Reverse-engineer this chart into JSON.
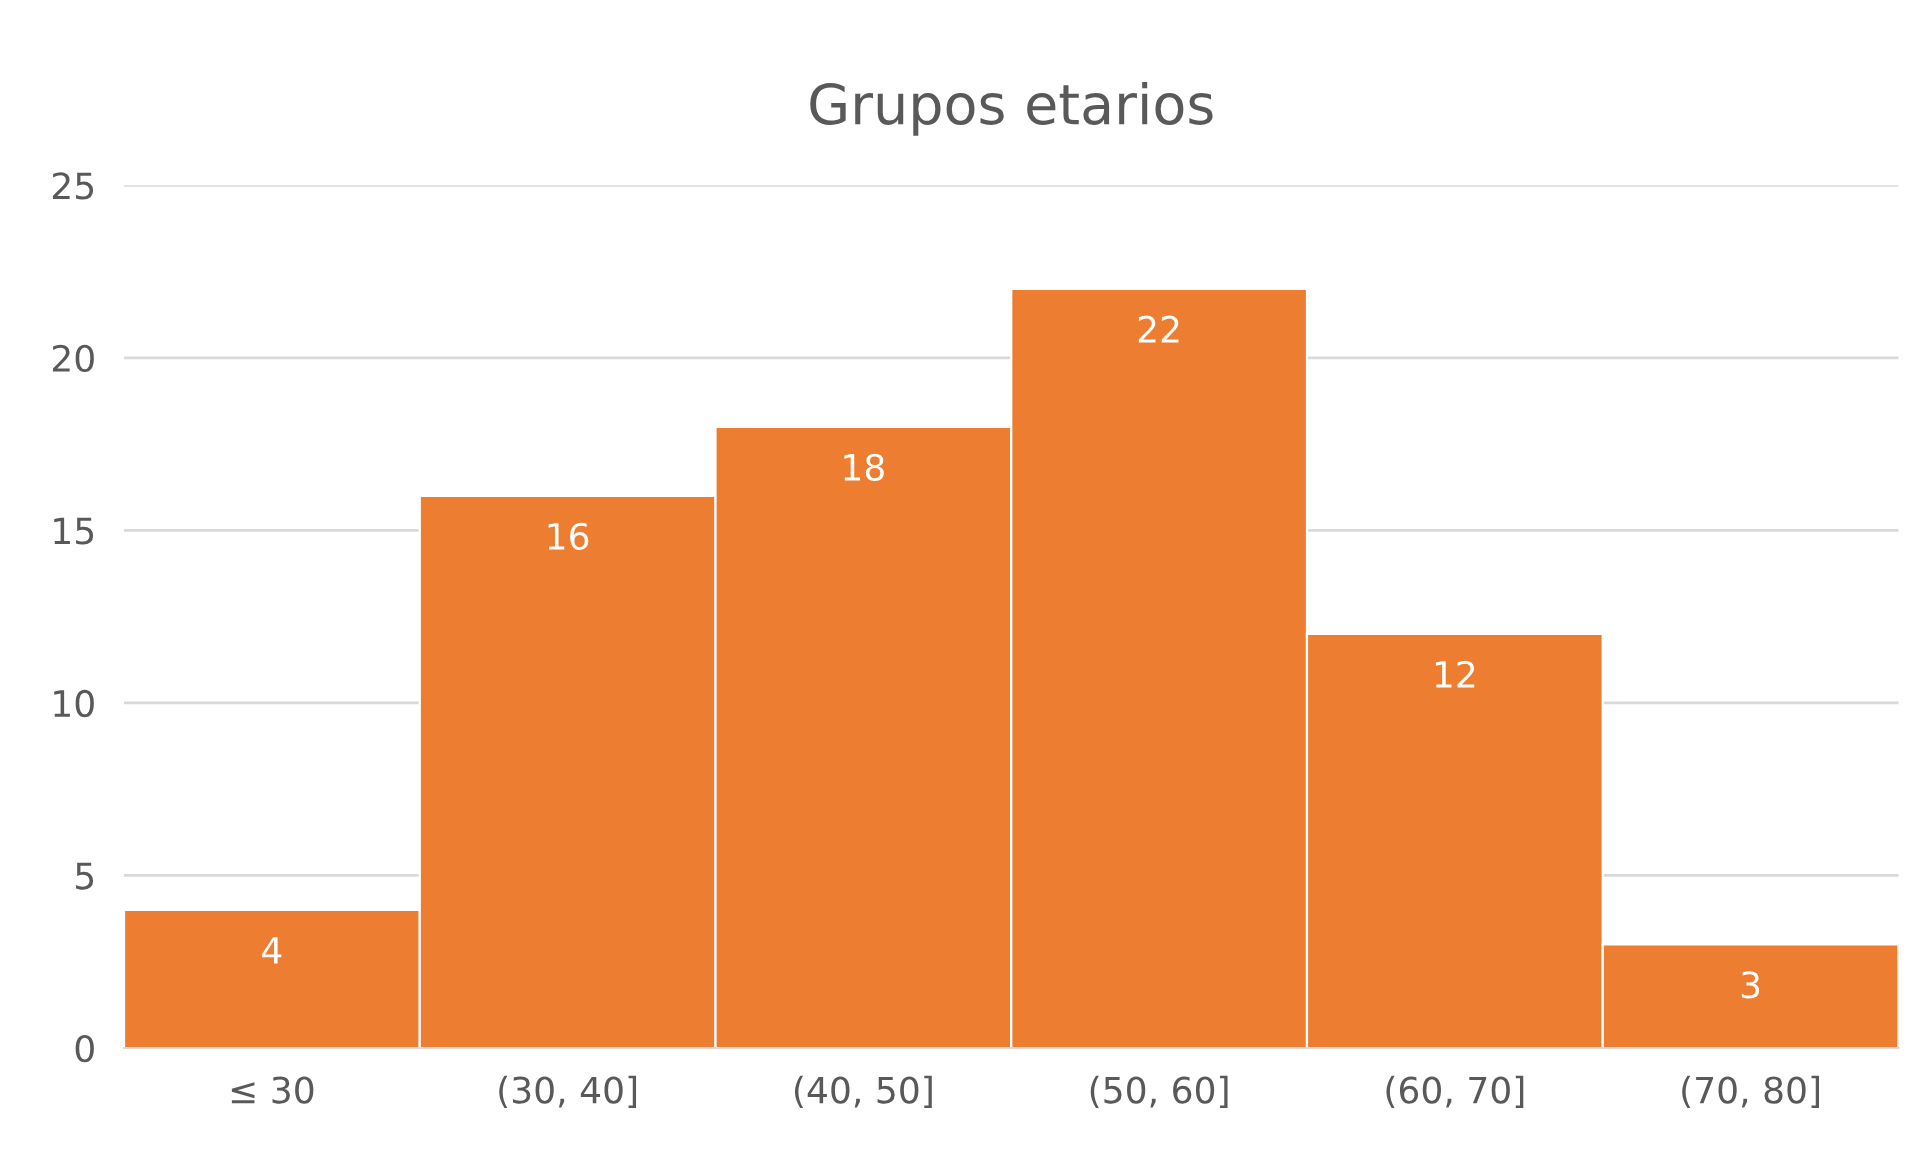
{
  "chart_data": {
    "type": "bar",
    "title": "Grupos etarios",
    "categories": [
      "≤ 30",
      "(30, 40]",
      "(40, 50]",
      "(50, 60]",
      "(60, 70]",
      "(70, 80]"
    ],
    "values": [
      4,
      16,
      18,
      22,
      12,
      3
    ],
    "color": "#ed7d31",
    "ylim": [
      0,
      25
    ],
    "yticks": [
      0,
      5,
      10,
      15,
      20,
      25
    ],
    "grid": "y",
    "data_labels": true
  }
}
